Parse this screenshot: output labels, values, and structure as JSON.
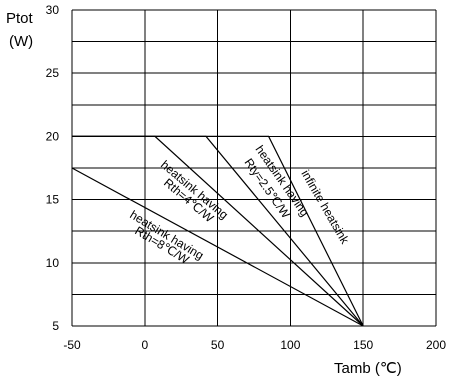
{
  "chart_data": {
    "type": "line",
    "ylabel_line1": "Ptot",
    "ylabel_line2": "(W)",
    "xlabel": "Tamb (℃)",
    "xlim": [
      -50,
      200
    ],
    "ylim": [
      5,
      30
    ],
    "x_ticks": [
      -50,
      0,
      50,
      100,
      150,
      200
    ],
    "y_ticks": [
      5,
      10,
      15,
      20,
      25,
      30
    ],
    "grid": true,
    "series": [
      {
        "name": "infinite heatsink",
        "x": [
          -50,
          85,
          150
        ],
        "y": [
          20,
          20,
          5
        ]
      },
      {
        "name": "heatsink having Rty=2.5℃/W",
        "x": [
          -50,
          42,
          150
        ],
        "y": [
          20,
          20,
          5
        ]
      },
      {
        "name": "heatsink having Rth=4℃/W",
        "x": [
          -50,
          7,
          150
        ],
        "y": [
          20,
          20,
          5
        ]
      },
      {
        "name": "heatsink having Rth=8℃/W",
        "x": [
          -50,
          150
        ],
        "y": [
          17.5,
          5
        ]
      }
    ],
    "annotations": [
      {
        "text": "infinite heatsink"
      },
      {
        "line1": "heatsink having",
        "line2": "Rty=2.5℃/W"
      },
      {
        "line1": "heatsink having",
        "line2": "Rth=4℃/W"
      },
      {
        "line1": "heatsink having",
        "line2": "Rth=8℃/W"
      }
    ]
  }
}
